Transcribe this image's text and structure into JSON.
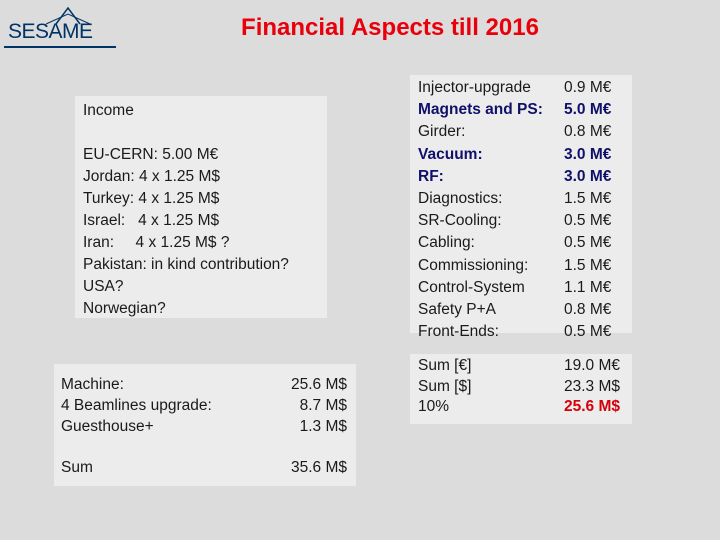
{
  "header": {
    "logo_text": "SESAME",
    "title": "Financial Aspects till 2016"
  },
  "income": {
    "heading": "Income",
    "lines": [
      "EU-CERN:  5.00 M€",
      "Jordan: 4 x 1.25 M$",
      "Turkey: 4 x 1.25 M$",
      "Israel:   4 x 1.25 M$",
      "Iran:     4 x 1.25 M$ ?",
      "Pakistan: in kind contribution?",
      "USA?",
      "Norwegian?"
    ]
  },
  "costs": {
    "items": [
      {
        "label": "Injector-upgrade",
        "value": "0.9 M€",
        "bold": false
      },
      {
        "label": "Magnets and PS:",
        "value": "5.0 M€",
        "bold": true
      },
      {
        "label": "Girder:",
        "value": "0.8 M€",
        "bold": false
      },
      {
        "label": "Vacuum:",
        "value": "3.0 M€",
        "bold": true
      },
      {
        "label": "RF:",
        "value": "3.0 M€",
        "bold": true
      },
      {
        "label": "Diagnostics:",
        "value": "1.5 M€",
        "bold": false
      },
      {
        "label": "SR-Cooling:",
        "value": "0.5 M€",
        "bold": false
      },
      {
        "label": "Cabling:",
        "value": "0.5 M€",
        "bold": false
      },
      {
        "label": "Commissioning:",
        "value": "1.5 M€",
        "bold": false
      },
      {
        "label": "Control-System",
        "value": "1.1 M€",
        "bold": false
      },
      {
        "label": "Safety P+A",
        "value": "0.8 M€",
        "bold": false
      },
      {
        "label": "Front-Ends:",
        "value": "0.5 M€",
        "bold": false
      }
    ]
  },
  "sums": {
    "items": [
      {
        "label": "Sum [€]",
        "value": "19.0 M€"
      },
      {
        "label": "Sum [$]",
        "value": "23.3 M$"
      },
      {
        "label": "10%",
        "value": "25.6 M$"
      }
    ]
  },
  "machine": {
    "items": [
      {
        "label": "Machine:",
        "value": "25.6 M$"
      },
      {
        "label": "4 Beamlines upgrade:",
        "value": "8.7 M$"
      },
      {
        "label": "Guesthouse+",
        "value": "1.3 M$"
      }
    ],
    "sum_label": "Sum",
    "sum_value": "35.6 M$"
  },
  "colors": {
    "title": "#e8000b",
    "highlight_blue": "#10106a",
    "highlight_red": "#d4000a",
    "background": "#dcdcdc"
  }
}
